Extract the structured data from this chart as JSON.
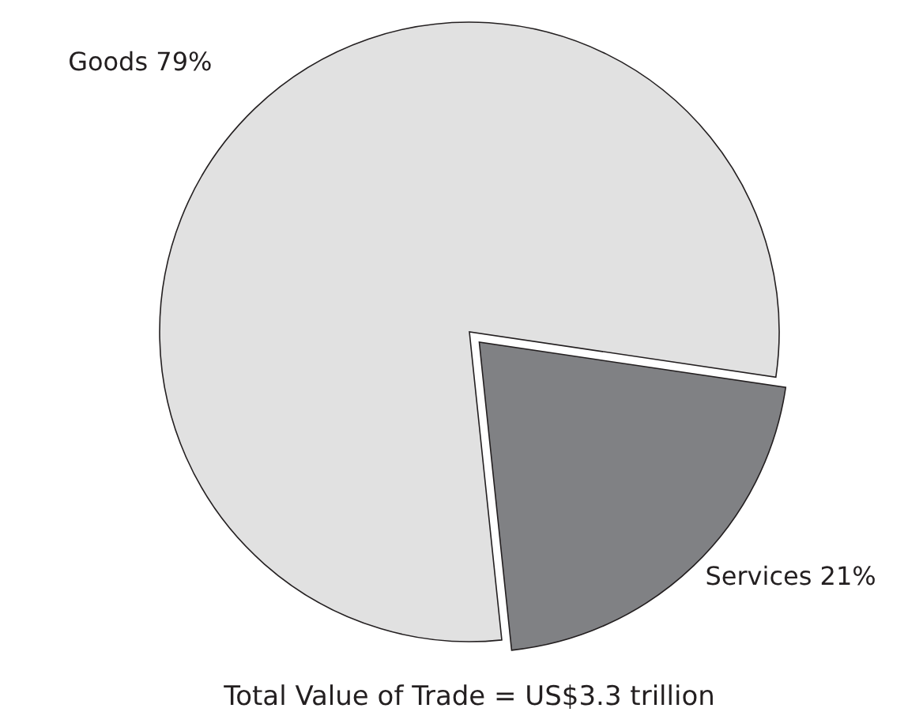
{
  "chart_data": {
    "type": "pie",
    "title": "Total Value of Trade = US$3.3 trillion",
    "categories": [
      "Goods 79%",
      "Services 21%"
    ],
    "values": [
      79,
      21
    ],
    "colors": [
      "#e1e1e1",
      "#808184"
    ]
  }
}
